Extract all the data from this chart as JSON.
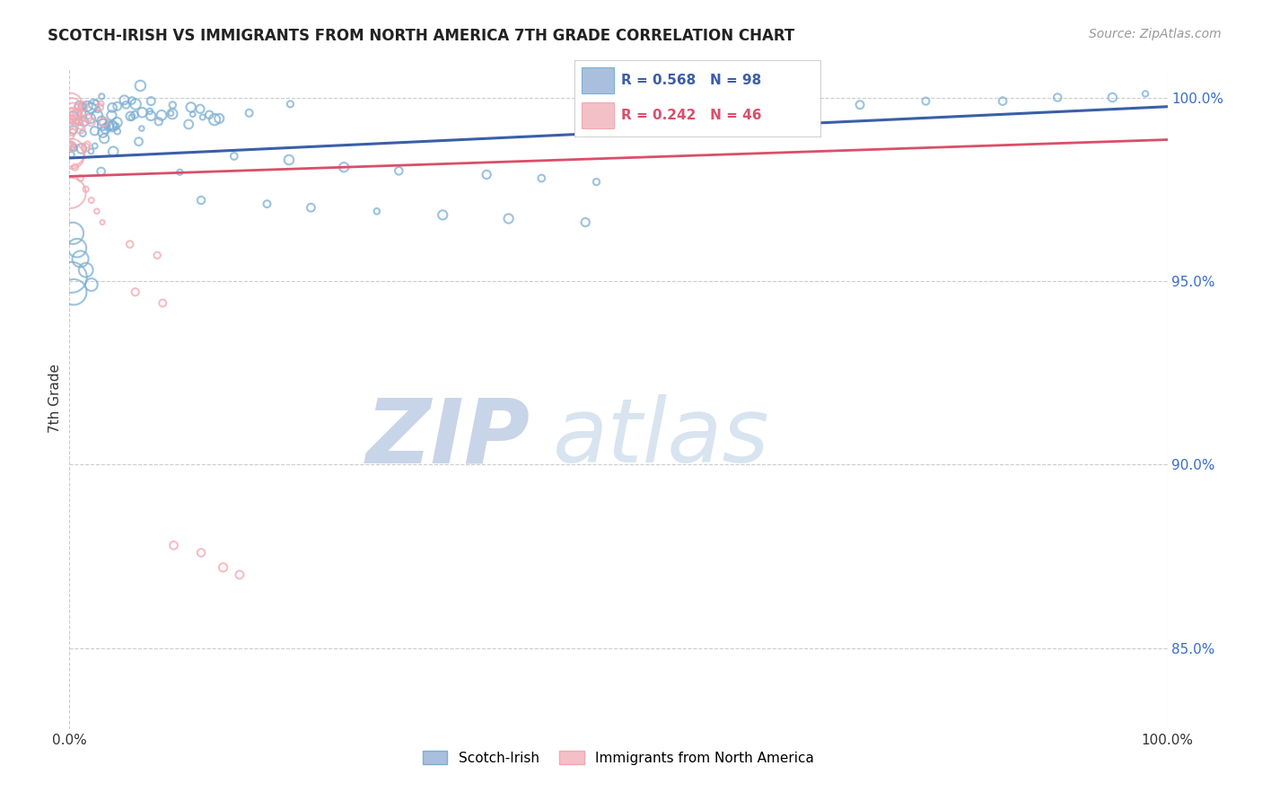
{
  "title": "SCOTCH-IRISH VS IMMIGRANTS FROM NORTH AMERICA 7TH GRADE CORRELATION CHART",
  "source": "Source: ZipAtlas.com",
  "ylabel": "7th Grade",
  "xmin": 0.0,
  "xmax": 1.0,
  "ymin": 0.828,
  "ymax": 1.008,
  "yticks": [
    0.85,
    0.9,
    0.95,
    1.0
  ],
  "legend_blue_label": "Scotch-Irish",
  "legend_pink_label": "Immigrants from North America",
  "r_blue": 0.568,
  "n_blue": 98,
  "r_pink": 0.242,
  "n_pink": 46,
  "blue_color": "#7BAFD4",
  "pink_color": "#F4A7B0",
  "blue_line_color": "#3A5FA8",
  "pink_line_color": "#D94F6A",
  "blue_line_y0": 0.9835,
  "blue_line_y1": 0.9975,
  "pink_line_y0": 0.9785,
  "pink_line_y1": 0.9885,
  "grid_color": "#CCCCCC",
  "background_color": "#FFFFFF",
  "title_fontsize": 12,
  "source_fontsize": 10,
  "watermark_text": "ZIPatlas",
  "watermark_color": "#E5EBF5",
  "blue_scatter_seed": 42,
  "pink_scatter_seed": 77
}
